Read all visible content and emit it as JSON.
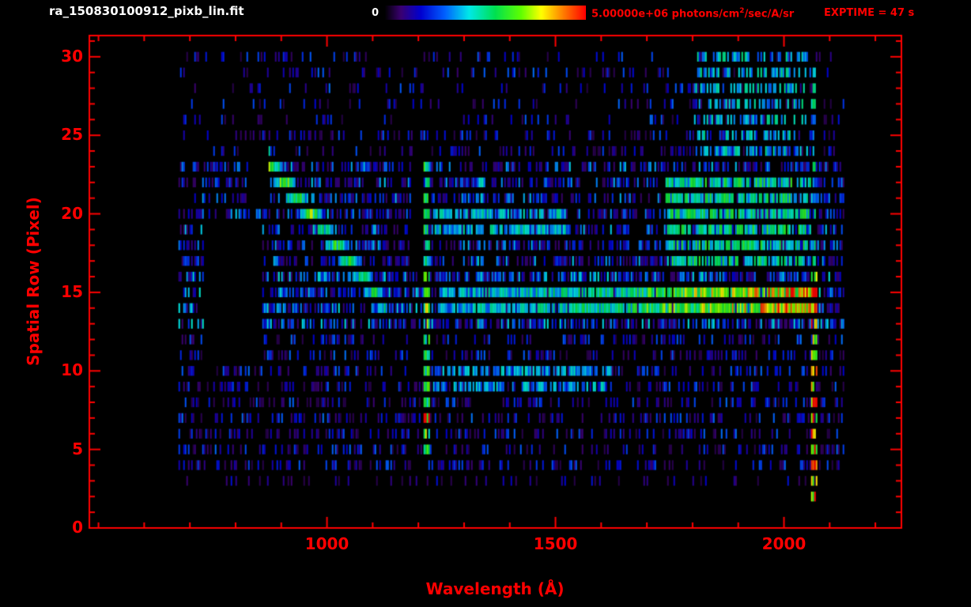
{
  "header": {
    "title": "ra_150830100912_pixb_lin.fit",
    "exptime": "EXPTIME = 47 s",
    "colorbar": {
      "min_label": "0",
      "max_value": "5.00000e+06 photons/cm",
      "units_sup": "2",
      "units_post": "/sec/A/sr"
    }
  },
  "chart_data": {
    "type": "heatmap",
    "title": "ra_150830100912_pixb_lin.fit",
    "xlabel": "Wavelength (Å)",
    "ylabel": "Spatial Row (Pixel)",
    "exptime_seconds": 47,
    "value_range": [
      0,
      5000000
    ],
    "value_units": "photons/cm2/sec/A/sr",
    "axis": {
      "xmin": 480,
      "xmax": 2257,
      "ymin": 0,
      "ymax": 31.35
    },
    "x_ticks": [
      1000,
      1500,
      2000
    ],
    "x_minor_step": 100,
    "y_ticks": [
      0,
      5,
      10,
      15,
      20,
      25,
      30
    ],
    "y_minor_step": 1,
    "data_xrange": [
      675,
      2130
    ],
    "seed": 830912,
    "colors": {
      "axis": "#ff0000",
      "background": "#000000"
    },
    "colorbar": {
      "stops": [
        [
          0.0,
          "#000000"
        ],
        [
          0.08,
          "#3a0070"
        ],
        [
          0.18,
          "#0000d0"
        ],
        [
          0.3,
          "#0060ff"
        ],
        [
          0.42,
          "#00e8e8"
        ],
        [
          0.55,
          "#00e050"
        ],
        [
          0.68,
          "#60ff00"
        ],
        [
          0.78,
          "#ffff00"
        ],
        [
          0.88,
          "#ff8800"
        ],
        [
          1.0,
          "#ff0000"
        ]
      ]
    },
    "background_rows": [
      {
        "rows": [
          3,
          3
        ],
        "density": 0.12,
        "intensity": [
          0.05,
          0.22
        ]
      },
      {
        "rows": [
          4,
          8
        ],
        "density": 0.3,
        "intensity": [
          0.05,
          0.32
        ]
      },
      {
        "rows": [
          9,
          12
        ],
        "density": 0.3,
        "intensity": [
          0.05,
          0.32
        ]
      },
      {
        "rows": [
          13,
          16
        ],
        "density": 0.6,
        "intensity": [
          0.08,
          0.45
        ]
      },
      {
        "rows": [
          17,
          23
        ],
        "density": 0.48,
        "intensity": [
          0.07,
          0.4
        ]
      },
      {
        "rows": [
          24,
          25
        ],
        "density": 0.26,
        "intensity": [
          0.05,
          0.3
        ]
      },
      {
        "rows": [
          26,
          30
        ],
        "density": 0.16,
        "intensity": [
          0.05,
          0.32
        ]
      }
    ],
    "features": [
      {
        "type": "diagonal",
        "x0": 872,
        "row0": 23.2,
        "x1": 1125,
        "row1": 14.2,
        "width_rows": 1.7,
        "intensity": 0.82,
        "dropout": 0.08
      },
      {
        "type": "vline",
        "x": 1216,
        "width": 16,
        "rows": [
          6.2,
          7.8
        ],
        "intensity": 0.97,
        "dropout": 0.05
      },
      {
        "type": "vline",
        "x": 1216,
        "width": 16,
        "rows": [
          4.6,
          6.2
        ],
        "intensity": 0.72,
        "dropout": 0.08
      },
      {
        "type": "vline",
        "x": 1216,
        "width": 16,
        "rows": [
          7.8,
          12.4
        ],
        "intensity": 0.6,
        "dropout": 0.1
      },
      {
        "type": "vline",
        "x": 1216,
        "width": 16,
        "rows": [
          12.4,
          16.5
        ],
        "intensity": 0.72,
        "dropout": 0.08
      },
      {
        "type": "vline",
        "x": 1216,
        "width": 14,
        "rows": [
          16.5,
          23.3
        ],
        "intensity": 0.58,
        "dropout": 0.12
      },
      {
        "type": "vline",
        "x": 1335,
        "width": 12,
        "rows": [
          13,
          22.5
        ],
        "intensity": 0.45,
        "dropout": 0.3
      },
      {
        "type": "vline",
        "x": 1815,
        "width": 12,
        "rows": [
          13.5,
          23
        ],
        "intensity": 0.42,
        "dropout": 0.3
      },
      {
        "type": "hband",
        "x0": 1240,
        "x1": 1680,
        "rows": [
          13.8,
          15.9
        ],
        "i0": 0.4,
        "i1": 0.55,
        "dropout": 0.15
      },
      {
        "type": "hband",
        "x0": 1680,
        "x1": 2072,
        "rows": [
          13.8,
          15.9
        ],
        "i0": 0.62,
        "i1": 0.95,
        "dropout": 0.05
      },
      {
        "type": "blob",
        "x0": 1740,
        "x1": 2058,
        "rows": [
          16.5,
          22.5
        ],
        "intensity": 0.55,
        "dropout": 0.3
      },
      {
        "type": "blob",
        "x0": 1230,
        "x1": 1520,
        "rows": [
          18.6,
          20.4
        ],
        "intensity": 0.45,
        "dropout": 0.3
      },
      {
        "type": "blob",
        "x0": 1230,
        "x1": 1620,
        "rows": [
          8.7,
          10.4
        ],
        "intensity": 0.4,
        "dropout": 0.4
      },
      {
        "type": "blob",
        "x0": 1800,
        "x1": 2055,
        "rows": [
          24,
          30.3
        ],
        "intensity": 0.45,
        "dropout": 0.55
      },
      {
        "type": "vline",
        "x": 2063,
        "width": 14,
        "rows": [
          1.6,
          16.3
        ],
        "intensity": 0.92,
        "dropout": 0.2
      },
      {
        "type": "vline",
        "x": 2063,
        "width": 12,
        "rows": [
          16.3,
          29.5
        ],
        "intensity": 0.5,
        "dropout": 0.35
      }
    ],
    "gaps": [
      {
        "x0": 728,
        "x1": 858,
        "rows": [
          10.5,
          19.4
        ]
      },
      {
        "x0": 826,
        "x1": 870,
        "rows": [
          20.6,
          23.4
        ]
      },
      {
        "x0": 1176,
        "x1": 1210,
        "rows": [
          9.3,
          12.3
        ]
      },
      {
        "x0": 1181,
        "x1": 1210,
        "rows": [
          16.6,
          23.4
        ]
      }
    ]
  }
}
